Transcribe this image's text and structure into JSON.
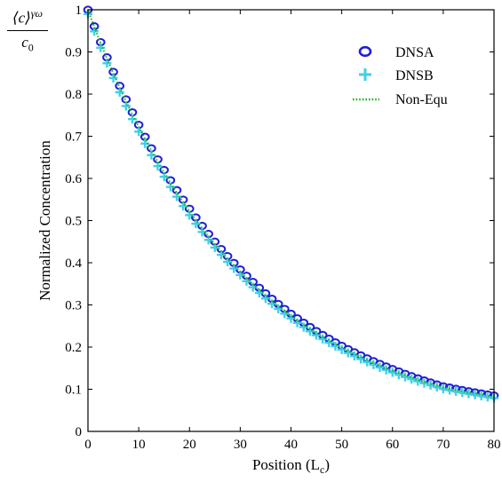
{
  "corner_label": {
    "numerator": "⟨c⟩",
    "numerator_sup": "γω",
    "denominator": "c",
    "denominator_sub": "0"
  },
  "chart_data": {
    "type": "line",
    "xlabel": "Position (L",
    "xlabel_sub": "c",
    "xlabel_close": ")",
    "ylabel": "Normalized Concentration",
    "xlim": [
      0,
      80
    ],
    "ylim": [
      0,
      1
    ],
    "xticks": [
      0,
      10,
      20,
      30,
      40,
      50,
      60,
      70,
      80
    ],
    "yticks": [
      0,
      0.1,
      0.2,
      0.3,
      0.4,
      0.5,
      0.6,
      0.7,
      0.8,
      0.9,
      1
    ],
    "ytick_labels": [
      "0",
      "0.1",
      "0.2",
      "0.3",
      "0.4",
      "0.5",
      "0.6",
      "0.7",
      "0.8",
      "0.9",
      "1"
    ],
    "legend_position": "top-right",
    "grid": false,
    "x": [
      0,
      2,
      4,
      6,
      8,
      10,
      15,
      20,
      25,
      30,
      40,
      50,
      60,
      70,
      80
    ],
    "series": [
      {
        "name": "DNSA",
        "marker": "circle",
        "color": "#1f1fd6",
        "values": [
          1.0,
          0.938,
          0.88,
          0.826,
          0.775,
          0.727,
          0.62,
          0.528,
          0.45,
          0.384,
          0.279,
          0.203,
          0.148,
          0.107,
          0.085
        ]
      },
      {
        "name": "DNSB",
        "marker": "plus",
        "color": "#3fd0e6",
        "values": [
          0.99,
          0.925,
          0.866,
          0.811,
          0.759,
          0.711,
          0.604,
          0.513,
          0.436,
          0.371,
          0.268,
          0.194,
          0.14,
          0.101,
          0.079
        ]
      },
      {
        "name": "Non-Equ",
        "marker": "dotted-line",
        "color": "#22b022",
        "values": [
          1.0,
          0.936,
          0.877,
          0.822,
          0.77,
          0.722,
          0.614,
          0.522,
          0.444,
          0.378,
          0.274,
          0.199,
          0.144,
          0.104,
          0.082
        ]
      }
    ]
  }
}
